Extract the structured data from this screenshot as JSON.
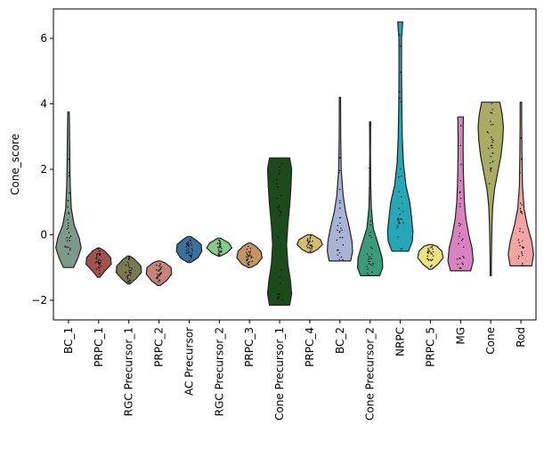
{
  "chart_data": {
    "type": "violin",
    "title": "",
    "xlabel": "",
    "ylabel": "Cone_score",
    "ylim": [
      -2.6,
      6.9
    ],
    "yticks": [
      -2,
      0,
      2,
      4,
      6
    ],
    "grid": false,
    "legend": "none",
    "categories": [
      {
        "name": "BC_1",
        "color": "#7b9a8c",
        "min": -1.0,
        "max": 3.75,
        "profile": [
          [
            -1.0,
            0.4
          ],
          [
            -0.7,
            0.75
          ],
          [
            -0.4,
            1.0
          ],
          [
            -0.1,
            0.85
          ],
          [
            0.3,
            0.45
          ],
          [
            0.8,
            0.22
          ],
          [
            1.5,
            0.14
          ],
          [
            2.2,
            0.11
          ],
          [
            3.0,
            0.09
          ],
          [
            3.75,
            0.06
          ]
        ]
      },
      {
        "name": "PRPC_1",
        "color": "#a2514f",
        "min": -1.3,
        "max": -0.4,
        "profile": [
          [
            -1.3,
            0.08
          ],
          [
            -1.1,
            0.5
          ],
          [
            -0.9,
            1.0
          ],
          [
            -0.7,
            0.95
          ],
          [
            -0.5,
            0.5
          ],
          [
            -0.4,
            0.08
          ]
        ]
      },
      {
        "name": "RGC Precursor_1",
        "color": "#7a7a52",
        "min": -1.5,
        "max": -0.65,
        "profile": [
          [
            -1.5,
            0.1
          ],
          [
            -1.35,
            0.55
          ],
          [
            -1.15,
            1.0
          ],
          [
            -0.95,
            0.95
          ],
          [
            -0.75,
            0.45
          ],
          [
            -0.65,
            0.1
          ]
        ]
      },
      {
        "name": "PRPC_2",
        "color": "#c4837b",
        "min": -1.55,
        "max": -0.8,
        "profile": [
          [
            -1.55,
            0.1
          ],
          [
            -1.4,
            0.6
          ],
          [
            -1.2,
            1.0
          ],
          [
            -1.0,
            0.95
          ],
          [
            -0.85,
            0.45
          ],
          [
            -0.8,
            0.1
          ]
        ]
      },
      {
        "name": "AC Precursor",
        "color": "#3b6f9c",
        "min": -0.85,
        "max": -0.05,
        "profile": [
          [
            -0.85,
            0.1
          ],
          [
            -0.7,
            0.7
          ],
          [
            -0.5,
            1.0
          ],
          [
            -0.3,
            0.95
          ],
          [
            -0.15,
            0.5
          ],
          [
            -0.05,
            0.1
          ]
        ]
      },
      {
        "name": "RGC Precursor_2",
        "color": "#86cb86",
        "min": -0.65,
        "max": -0.1,
        "profile": [
          [
            -0.65,
            0.1
          ],
          [
            -0.55,
            0.6
          ],
          [
            -0.4,
            1.0
          ],
          [
            -0.25,
            0.75
          ],
          [
            -0.1,
            0.1
          ]
        ]
      },
      {
        "name": "PRPC_3",
        "color": "#c39563",
        "min": -1.0,
        "max": -0.25,
        "profile": [
          [
            -1.0,
            0.1
          ],
          [
            -0.9,
            0.6
          ],
          [
            -0.7,
            1.0
          ],
          [
            -0.5,
            0.9
          ],
          [
            -0.35,
            0.5
          ],
          [
            -0.25,
            0.1
          ]
        ]
      },
      {
        "name": "Cone Precursor_1",
        "color": "#1c4a1c",
        "min": -2.15,
        "max": 2.35,
        "profile": [
          [
            -2.15,
            0.8
          ],
          [
            -1.8,
            0.95
          ],
          [
            -1.4,
            0.85
          ],
          [
            -0.9,
            0.65
          ],
          [
            -0.3,
            0.55
          ],
          [
            0.3,
            0.65
          ],
          [
            0.9,
            0.8
          ],
          [
            1.5,
            0.9
          ],
          [
            2.0,
            0.95
          ],
          [
            2.35,
            0.8
          ]
        ]
      },
      {
        "name": "PRPC_4",
        "color": "#d8bd6f",
        "min": -0.55,
        "max": 0.0,
        "profile": [
          [
            -0.55,
            0.1
          ],
          [
            -0.45,
            0.6
          ],
          [
            -0.3,
            1.0
          ],
          [
            -0.15,
            0.85
          ],
          [
            0.0,
            0.2
          ]
        ]
      },
      {
        "name": "BC_2",
        "color": "#a9b3d6",
        "min": -0.8,
        "max": 4.2,
        "profile": [
          [
            -0.8,
            0.85
          ],
          [
            -0.5,
            1.0
          ],
          [
            -0.2,
            0.95
          ],
          [
            0.2,
            0.75
          ],
          [
            0.7,
            0.45
          ],
          [
            1.2,
            0.25
          ],
          [
            2.0,
            0.1
          ],
          [
            3.0,
            0.06
          ],
          [
            4.2,
            0.05
          ]
        ]
      },
      {
        "name": "Cone Precursor_2",
        "color": "#3a9a7a",
        "min": -1.25,
        "max": 3.45,
        "profile": [
          [
            -1.25,
            0.75
          ],
          [
            -1.0,
            1.0
          ],
          [
            -0.7,
            0.95
          ],
          [
            -0.3,
            0.65
          ],
          [
            0.2,
            0.25
          ],
          [
            0.8,
            0.1
          ],
          [
            1.5,
            0.05
          ],
          [
            2.5,
            0.03
          ],
          [
            3.45,
            0.04
          ]
        ]
      },
      {
        "name": "NRPC",
        "color": "#26a7b8",
        "min": -0.5,
        "max": 6.5,
        "profile": [
          [
            -0.5,
            0.65
          ],
          [
            -0.2,
            0.95
          ],
          [
            0.1,
            1.0
          ],
          [
            0.5,
            0.9
          ],
          [
            1.0,
            0.75
          ],
          [
            1.5,
            0.45
          ],
          [
            2.2,
            0.25
          ],
          [
            3.0,
            0.16
          ],
          [
            4.0,
            0.12
          ],
          [
            5.0,
            0.1
          ],
          [
            6.0,
            0.1
          ],
          [
            6.5,
            0.2
          ]
        ]
      },
      {
        "name": "PRPC_5",
        "color": "#eee47e",
        "min": -1.05,
        "max": -0.3,
        "profile": [
          [
            -1.05,
            0.1
          ],
          [
            -0.9,
            0.6
          ],
          [
            -0.7,
            1.0
          ],
          [
            -0.5,
            0.9
          ],
          [
            -0.35,
            0.5
          ],
          [
            -0.3,
            0.1
          ]
        ]
      },
      {
        "name": "MG",
        "color": "#d882c0",
        "min": -1.1,
        "max": 3.6,
        "profile": [
          [
            -1.1,
            0.8
          ],
          [
            -0.8,
            1.0
          ],
          [
            -0.4,
            0.9
          ],
          [
            0.0,
            0.65
          ],
          [
            0.5,
            0.42
          ],
          [
            1.0,
            0.3
          ],
          [
            1.5,
            0.25
          ],
          [
            2.0,
            0.22
          ],
          [
            2.5,
            0.2
          ],
          [
            3.0,
            0.2
          ],
          [
            3.6,
            0.22
          ]
        ]
      },
      {
        "name": "Cone",
        "color": "#a8ad63",
        "min": -1.25,
        "max": 4.05,
        "profile": [
          [
            -1.25,
            0.04
          ],
          [
            -0.8,
            0.05
          ],
          [
            -0.3,
            0.07
          ],
          [
            0.3,
            0.1
          ],
          [
            0.9,
            0.16
          ],
          [
            1.4,
            0.3
          ],
          [
            1.9,
            0.55
          ],
          [
            2.4,
            0.8
          ],
          [
            2.9,
            0.95
          ],
          [
            3.3,
            1.0
          ],
          [
            3.7,
            0.9
          ],
          [
            4.05,
            0.72
          ]
        ]
      },
      {
        "name": "Rod",
        "color": "#f2a4a2",
        "min": -0.95,
        "max": 4.05,
        "profile": [
          [
            -0.95,
            0.85
          ],
          [
            -0.6,
            1.0
          ],
          [
            -0.2,
            0.85
          ],
          [
            0.3,
            0.5
          ],
          [
            0.8,
            0.25
          ],
          [
            1.5,
            0.12
          ],
          [
            2.5,
            0.08
          ],
          [
            3.5,
            0.06
          ],
          [
            4.05,
            0.06
          ]
        ]
      }
    ]
  }
}
